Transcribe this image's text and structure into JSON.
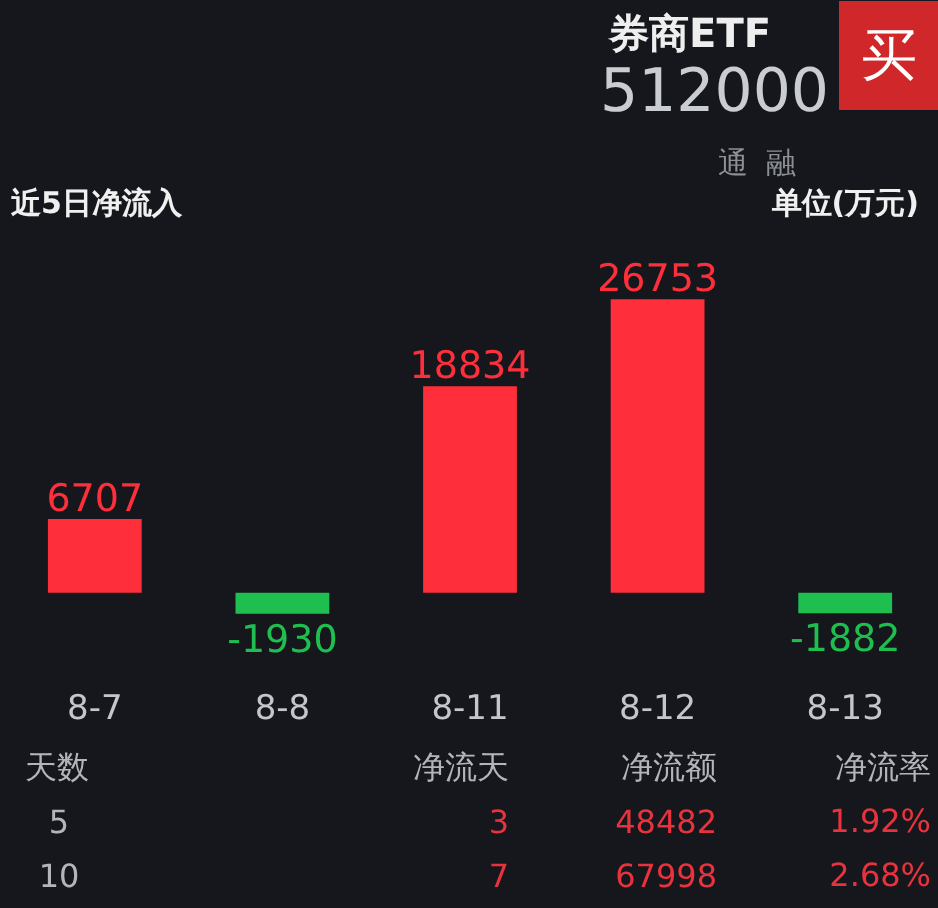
{
  "chart_data": {
    "type": "bar",
    "title": "近5日净流入",
    "categories": [
      "8-7",
      "8-8",
      "8-11",
      "8-12",
      "8-13"
    ],
    "values": [
      6707,
      -1930,
      18834,
      26753,
      -1882
    ],
    "colors": [
      "#fe2e3a",
      "#1fbf4f",
      "#fe2e3a",
      "#fe2e3a",
      "#1fbf4f"
    ],
    "data_labels": true,
    "annotations": [
      "券商ETF",
      "512000",
      "买",
      "通",
      "融",
      "单位(万元)",
      "天数",
      "净流天",
      "净流额",
      "净流率",
      "5",
      "3",
      "48482",
      "1.92%",
      "10",
      "7",
      "67998",
      "2.68%"
    ]
  }
}
